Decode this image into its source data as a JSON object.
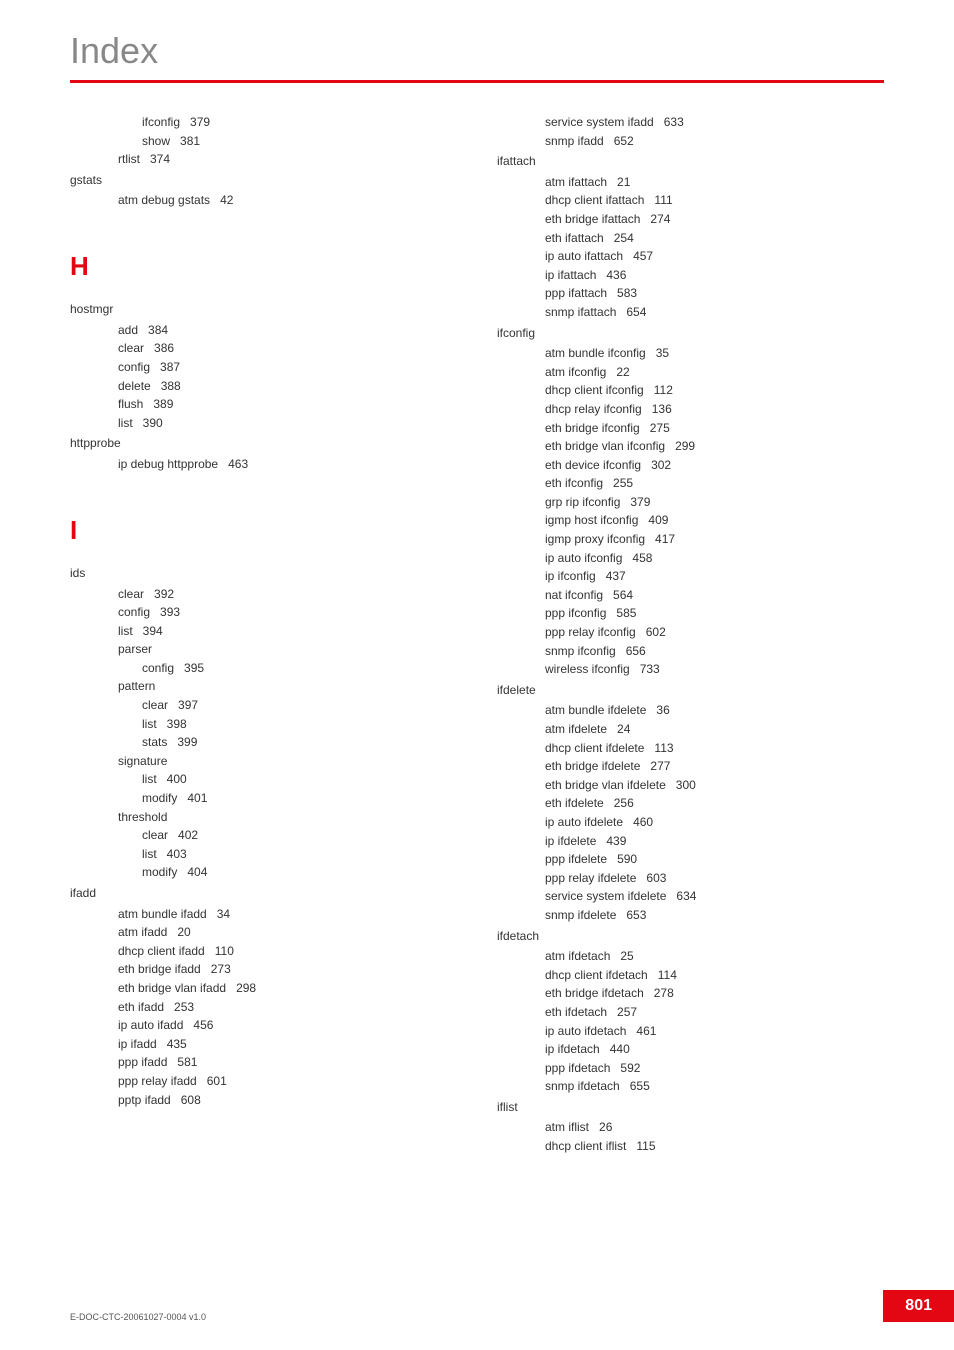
{
  "page": {
    "title": "Index",
    "doc_id": "E-DOC-CTC-20061027-0004 v1.0",
    "page_number": "801"
  },
  "colors": {
    "accent": "#e30613",
    "title_gray": "#888888",
    "text": "#333333",
    "bg": "#ffffff"
  },
  "left_col": {
    "cont1": [
      {
        "lvl": 3,
        "text": "ifconfig",
        "pg": "379"
      },
      {
        "lvl": 3,
        "text": "show",
        "pg": "381"
      },
      {
        "lvl": 2,
        "text": "rtlist",
        "pg": "374"
      }
    ],
    "gstats_head": "gstats",
    "gstats": [
      {
        "lvl": 2,
        "text": "atm debug gstats",
        "pg": "42"
      }
    ],
    "letter_H": "H",
    "hostmgr_head": "hostmgr",
    "hostmgr": [
      {
        "lvl": 2,
        "text": "add",
        "pg": "384"
      },
      {
        "lvl": 2,
        "text": "clear",
        "pg": "386"
      },
      {
        "lvl": 2,
        "text": "config",
        "pg": "387"
      },
      {
        "lvl": 2,
        "text": "delete",
        "pg": "388"
      },
      {
        "lvl": 2,
        "text": "flush",
        "pg": "389"
      },
      {
        "lvl": 2,
        "text": "list",
        "pg": "390"
      }
    ],
    "httpprobe_head": "httpprobe",
    "httpprobe": [
      {
        "lvl": 2,
        "text": "ip debug httpprobe",
        "pg": "463"
      }
    ],
    "letter_I": "I",
    "ids_head": "ids",
    "ids": [
      {
        "lvl": 2,
        "text": "clear",
        "pg": "392"
      },
      {
        "lvl": 2,
        "text": "config",
        "pg": "393"
      },
      {
        "lvl": 2,
        "text": "list",
        "pg": "394"
      },
      {
        "lvl": 2,
        "text": "parser",
        "pg": ""
      },
      {
        "lvl": 3,
        "text": "config",
        "pg": "395"
      },
      {
        "lvl": 2,
        "text": "pattern",
        "pg": ""
      },
      {
        "lvl": 3,
        "text": "clear",
        "pg": "397"
      },
      {
        "lvl": 3,
        "text": "list",
        "pg": "398"
      },
      {
        "lvl": 3,
        "text": "stats",
        "pg": "399"
      },
      {
        "lvl": 2,
        "text": "signature",
        "pg": ""
      },
      {
        "lvl": 3,
        "text": "list",
        "pg": "400"
      },
      {
        "lvl": 3,
        "text": "modify",
        "pg": "401"
      },
      {
        "lvl": 2,
        "text": "threshold",
        "pg": ""
      },
      {
        "lvl": 3,
        "text": "clear",
        "pg": "402"
      },
      {
        "lvl": 3,
        "text": "list",
        "pg": "403"
      },
      {
        "lvl": 3,
        "text": "modify",
        "pg": "404"
      }
    ],
    "ifadd_head": "ifadd",
    "ifadd": [
      {
        "lvl": 2,
        "text": "atm bundle ifadd",
        "pg": "34"
      },
      {
        "lvl": 2,
        "text": "atm ifadd",
        "pg": "20"
      },
      {
        "lvl": 2,
        "text": "dhcp client ifadd",
        "pg": "110"
      },
      {
        "lvl": 2,
        "text": "eth bridge ifadd",
        "pg": "273"
      },
      {
        "lvl": 2,
        "text": "eth bridge vlan ifadd",
        "pg": "298"
      },
      {
        "lvl": 2,
        "text": "eth ifadd",
        "pg": "253"
      },
      {
        "lvl": 2,
        "text": "ip auto ifadd",
        "pg": "456"
      },
      {
        "lvl": 2,
        "text": "ip ifadd",
        "pg": "435"
      },
      {
        "lvl": 2,
        "text": "ppp ifadd",
        "pg": "581"
      },
      {
        "lvl": 2,
        "text": "ppp relay ifadd",
        "pg": "601"
      },
      {
        "lvl": 2,
        "text": "pptp ifadd",
        "pg": "608"
      }
    ]
  },
  "right_col": {
    "ifadd_cont": [
      {
        "lvl": 2,
        "text": "service system ifadd",
        "pg": "633"
      },
      {
        "lvl": 2,
        "text": "snmp ifadd",
        "pg": "652"
      }
    ],
    "ifattach_head": "ifattach",
    "ifattach": [
      {
        "lvl": 2,
        "text": "atm ifattach",
        "pg": "21"
      },
      {
        "lvl": 2,
        "text": "dhcp client ifattach",
        "pg": "111"
      },
      {
        "lvl": 2,
        "text": "eth bridge ifattach",
        "pg": "274"
      },
      {
        "lvl": 2,
        "text": "eth ifattach",
        "pg": "254"
      },
      {
        "lvl": 2,
        "text": "ip auto ifattach",
        "pg": "457"
      },
      {
        "lvl": 2,
        "text": "ip ifattach",
        "pg": "436"
      },
      {
        "lvl": 2,
        "text": "ppp ifattach",
        "pg": "583"
      },
      {
        "lvl": 2,
        "text": "snmp ifattach",
        "pg": "654"
      }
    ],
    "ifconfig_head": "ifconfig",
    "ifconfig": [
      {
        "lvl": 2,
        "text": "atm bundle ifconfig",
        "pg": "35"
      },
      {
        "lvl": 2,
        "text": "atm ifconfig",
        "pg": "22"
      },
      {
        "lvl": 2,
        "text": "dhcp client ifconfig",
        "pg": "112"
      },
      {
        "lvl": 2,
        "text": "dhcp relay ifconfig",
        "pg": "136"
      },
      {
        "lvl": 2,
        "text": "eth bridge ifconfig",
        "pg": "275"
      },
      {
        "lvl": 2,
        "text": "eth bridge vlan ifconfig",
        "pg": "299"
      },
      {
        "lvl": 2,
        "text": "eth device ifconfig",
        "pg": "302"
      },
      {
        "lvl": 2,
        "text": "eth ifconfig",
        "pg": "255"
      },
      {
        "lvl": 2,
        "text": "grp rip ifconfig",
        "pg": "379"
      },
      {
        "lvl": 2,
        "text": "igmp host ifconfig",
        "pg": "409"
      },
      {
        "lvl": 2,
        "text": "igmp proxy ifconfig",
        "pg": "417"
      },
      {
        "lvl": 2,
        "text": "ip auto ifconfig",
        "pg": "458"
      },
      {
        "lvl": 2,
        "text": "ip ifconfig",
        "pg": "437"
      },
      {
        "lvl": 2,
        "text": "nat ifconfig",
        "pg": "564"
      },
      {
        "lvl": 2,
        "text": "ppp ifconfig",
        "pg": "585"
      },
      {
        "lvl": 2,
        "text": "ppp relay ifconfig",
        "pg": "602"
      },
      {
        "lvl": 2,
        "text": "snmp ifconfig",
        "pg": "656"
      },
      {
        "lvl": 2,
        "text": "wireless ifconfig",
        "pg": "733"
      }
    ],
    "ifdelete_head": "ifdelete",
    "ifdelete": [
      {
        "lvl": 2,
        "text": "atm bundle ifdelete",
        "pg": "36"
      },
      {
        "lvl": 2,
        "text": "atm ifdelete",
        "pg": "24"
      },
      {
        "lvl": 2,
        "text": "dhcp client ifdelete",
        "pg": "113"
      },
      {
        "lvl": 2,
        "text": "eth bridge ifdelete",
        "pg": "277"
      },
      {
        "lvl": 2,
        "text": "eth bridge vlan ifdelete",
        "pg": "300"
      },
      {
        "lvl": 2,
        "text": "eth ifdelete",
        "pg": "256"
      },
      {
        "lvl": 2,
        "text": "ip auto ifdelete",
        "pg": "460"
      },
      {
        "lvl": 2,
        "text": "ip ifdelete",
        "pg": "439"
      },
      {
        "lvl": 2,
        "text": "ppp ifdelete",
        "pg": "590"
      },
      {
        "lvl": 2,
        "text": "ppp relay ifdelete",
        "pg": "603"
      },
      {
        "lvl": 2,
        "text": "service system ifdelete",
        "pg": "634"
      },
      {
        "lvl": 2,
        "text": "snmp ifdelete",
        "pg": "653"
      }
    ],
    "ifdetach_head": "ifdetach",
    "ifdetach": [
      {
        "lvl": 2,
        "text": "atm ifdetach",
        "pg": "25"
      },
      {
        "lvl": 2,
        "text": "dhcp client ifdetach",
        "pg": "114"
      },
      {
        "lvl": 2,
        "text": "eth bridge ifdetach",
        "pg": "278"
      },
      {
        "lvl": 2,
        "text": "eth ifdetach",
        "pg": "257"
      },
      {
        "lvl": 2,
        "text": "ip auto ifdetach",
        "pg": "461"
      },
      {
        "lvl": 2,
        "text": "ip ifdetach",
        "pg": "440"
      },
      {
        "lvl": 2,
        "text": "ppp ifdetach",
        "pg": "592"
      },
      {
        "lvl": 2,
        "text": "snmp ifdetach",
        "pg": "655"
      }
    ],
    "iflist_head": "iflist",
    "iflist": [
      {
        "lvl": 2,
        "text": "atm iflist",
        "pg": "26"
      },
      {
        "lvl": 2,
        "text": "dhcp client iflist",
        "pg": "115"
      }
    ]
  }
}
